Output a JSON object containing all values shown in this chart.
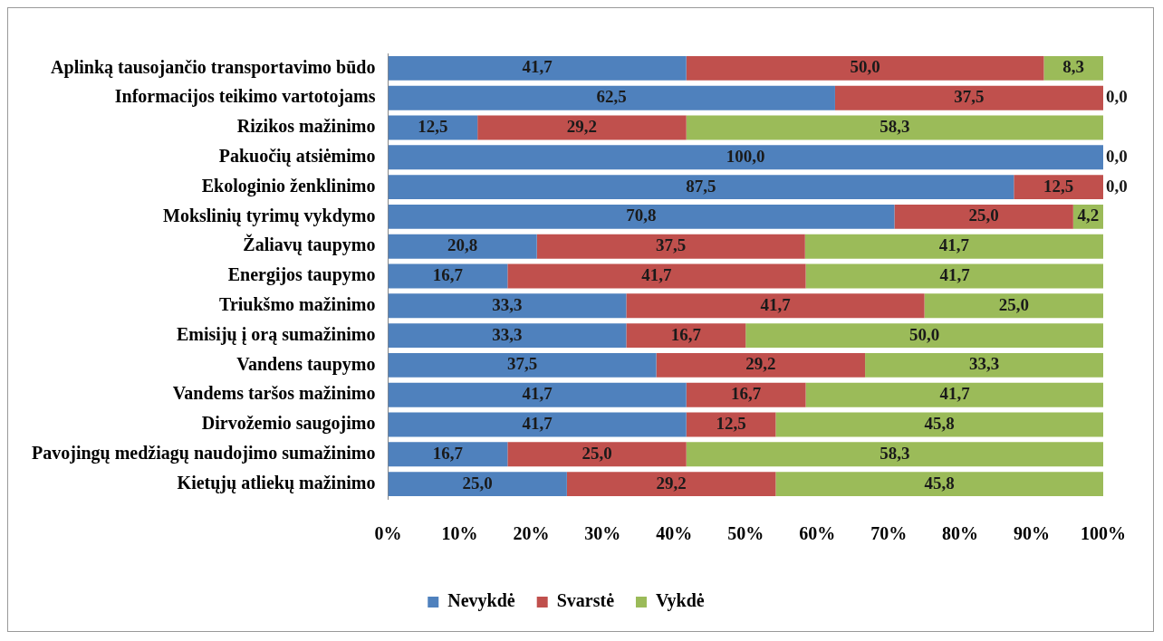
{
  "chart_data": {
    "type": "bar",
    "orientation": "horizontal",
    "stacked": true,
    "categories": [
      "Aplinką tausojančio transportavimo būdo",
      "Informacijos teikimo vartotojams",
      "Rizikos mažinimo",
      "Pakuočių atsiėmimo",
      "Ekologinio ženklinimo",
      "Mokslinių tyrimų vykdymo",
      "Žaliavų taupymo",
      "Energijos taupymo",
      "Triukšmo mažinimo",
      "Emisijų į orą sumažinimo",
      "Vandens taupymo",
      "Vandems taršos mažinimo",
      "Dirvožemio saugojimo",
      "Pavojingų medžiagų naudojimo sumažinimo",
      "Kietųjų atliekų mažinimo"
    ],
    "series": [
      {
        "name": "Nevykdė",
        "color": "#4f81bd",
        "values": [
          41.7,
          62.5,
          12.5,
          100,
          87.5,
          70.8,
          20.8,
          16.7,
          33.3,
          33.3,
          37.5,
          41.7,
          41.7,
          16.7,
          25.0
        ],
        "value_labels": [
          "41,7",
          "62,5",
          "12,5",
          "100,0",
          "87,5",
          "70,8",
          "20,8",
          "16,7",
          "33,3",
          "33,3",
          "37,5",
          "41,7",
          "41,7",
          "16,7",
          "25,0"
        ]
      },
      {
        "name": "Svarstė",
        "color": "#c0504d",
        "values": [
          50.0,
          37.5,
          29.2,
          0,
          12.5,
          25.0,
          37.5,
          41.7,
          41.7,
          16.7,
          29.2,
          16.7,
          12.5,
          25.0,
          29.2
        ],
        "value_labels": [
          "50,0",
          "37,5",
          "29,2",
          null,
          "12,5",
          "25,0",
          "37,5",
          "41,7",
          "41,7",
          "16,7",
          "29,2",
          "16,7",
          "12,5",
          "25,0",
          "29,2"
        ]
      },
      {
        "name": "Vykdė",
        "color": "#9bbb59",
        "values": [
          8.3,
          0,
          58.3,
          0,
          0,
          4.2,
          41.7,
          41.7,
          25.0,
          50.0,
          33.3,
          41.7,
          45.8,
          58.3,
          45.8
        ],
        "value_labels": [
          "8,3",
          "0,0",
          "58,3",
          "0,0",
          "0,0",
          "4,2",
          "41,7",
          "41,7",
          "25,0",
          "50,0",
          "33,3",
          "41,7",
          "45,8",
          "58,3",
          "45,8"
        ]
      }
    ],
    "xlim": [
      0,
      100
    ],
    "xticks": [
      {
        "value": 0,
        "label": "0%"
      },
      {
        "value": 10,
        "label": "10%"
      },
      {
        "value": 20,
        "label": "20%"
      },
      {
        "value": 30,
        "label": "30%"
      },
      {
        "value": 40,
        "label": "40%"
      },
      {
        "value": 50,
        "label": "50%"
      },
      {
        "value": 60,
        "label": "60%"
      },
      {
        "value": 70,
        "label": "70%"
      },
      {
        "value": 80,
        "label": "80%"
      },
      {
        "value": 90,
        "label": "90%"
      },
      {
        "value": 100,
        "label": "100%"
      }
    ],
    "grid": false,
    "legend": "bottom"
  }
}
